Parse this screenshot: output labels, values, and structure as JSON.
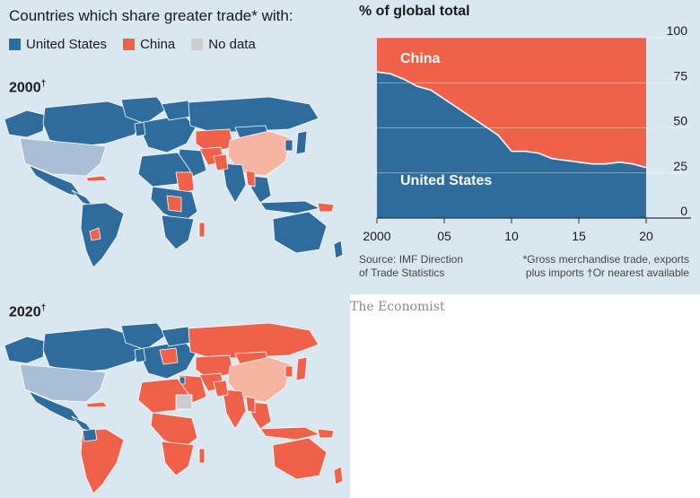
{
  "maps": {
    "heading": "Countries which share greater trade* with:",
    "legend": [
      {
        "label": "United States",
        "color": "#2e6c9e"
      },
      {
        "label": "China",
        "color": "#f0614a"
      },
      {
        "label": "No data",
        "color": "#c9cdd0"
      }
    ],
    "panels": [
      {
        "year": "2000",
        "mark": "†"
      },
      {
        "year": "2020",
        "mark": "†"
      }
    ]
  },
  "chart_data": {
    "type": "area",
    "title": "% of global total",
    "x": [
      2000,
      2001,
      2002,
      2003,
      2004,
      2005,
      2006,
      2007,
      2008,
      2009,
      2010,
      2011,
      2012,
      2013,
      2014,
      2015,
      2016,
      2017,
      2018,
      2019,
      2020
    ],
    "series": [
      {
        "name": "United States",
        "color": "#2e6c9e",
        "values": [
          81,
          80,
          77,
          73,
          71,
          66,
          61,
          56,
          51,
          46,
          37,
          37,
          36,
          33,
          32,
          31,
          30,
          30,
          31,
          30,
          28
        ]
      },
      {
        "name": "China",
        "color": "#f0614a",
        "values": [
          19,
          20,
          23,
          27,
          29,
          34,
          39,
          44,
          49,
          54,
          63,
          63,
          64,
          67,
          68,
          69,
          70,
          70,
          69,
          70,
          72
        ]
      }
    ],
    "stacked": true,
    "xlim": [
      2000,
      2020
    ],
    "ylim": [
      0,
      100
    ],
    "yticks": [
      0,
      25,
      50,
      75,
      100
    ],
    "xticks": [
      2000,
      2005,
      2010,
      2015,
      2020
    ],
    "xtick_labels": [
      "2000",
      "05",
      "10",
      "15",
      "20"
    ],
    "yaxis_side": "right",
    "grid": true
  },
  "source": {
    "line1": "Source: IMF Direction",
    "line2": "of Trade Statistics",
    "note1": "*Gross merchandise trade, exports",
    "note2": "plus imports  †Or nearest available"
  },
  "logo": "The Economist"
}
